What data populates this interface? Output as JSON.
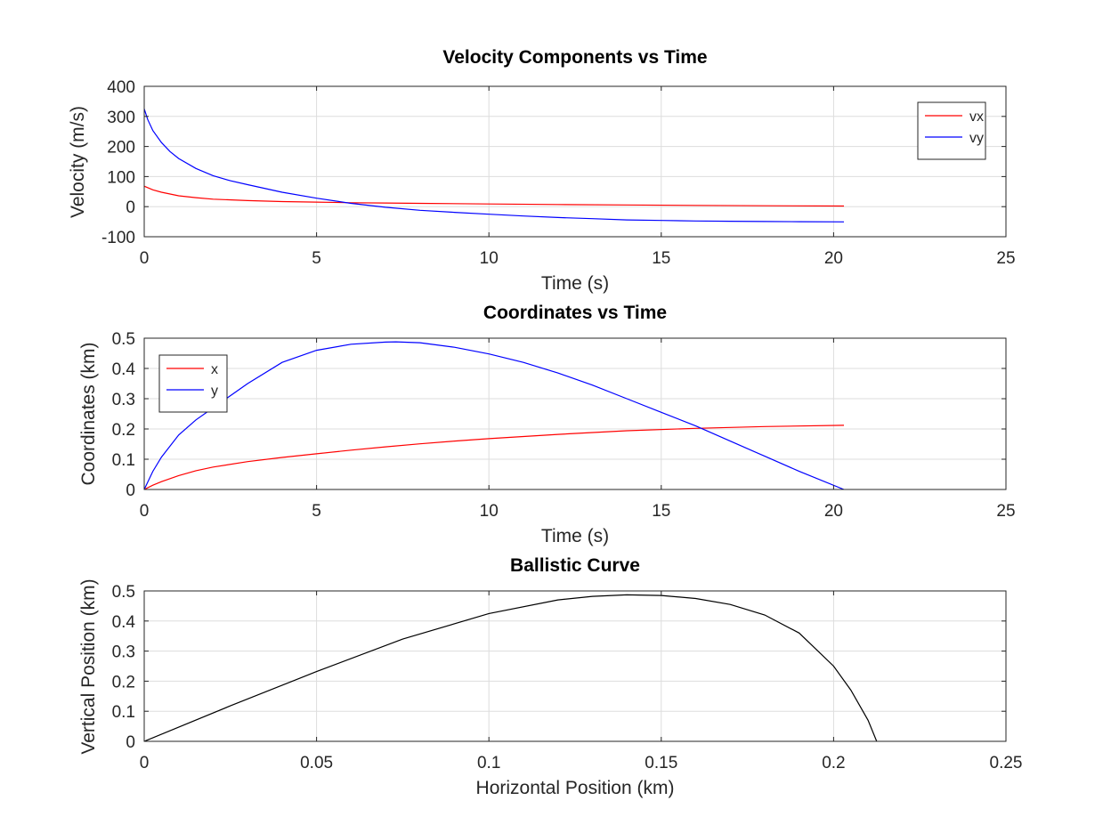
{
  "chart_data": [
    {
      "type": "line",
      "title": "Velocity Components vs Time",
      "xlabel": "Time (s)",
      "ylabel": "Velocity (m/s)",
      "xlim": [
        0,
        25
      ],
      "ylim": [
        -100,
        400
      ],
      "xticks": [
        "0",
        "5",
        "10",
        "15",
        "20",
        "25"
      ],
      "yticks": [
        "-100",
        "0",
        "100",
        "200",
        "300",
        "400"
      ],
      "grid": true,
      "legend": "top-right",
      "series": [
        {
          "name": "vx",
          "color": "#ff0000",
          "x": [
            0,
            0.25,
            0.5,
            1,
            1.5,
            2,
            3,
            4,
            5,
            6,
            7,
            8,
            10,
            12,
            14,
            16,
            18,
            20.3
          ],
          "y": [
            68,
            56,
            48,
            36,
            30,
            25,
            20,
            17,
            15,
            13,
            12,
            11,
            9,
            7,
            5.5,
            4,
            3,
            2
          ]
        },
        {
          "name": "vy",
          "color": "#0000ff",
          "x": [
            0,
            0.1,
            0.25,
            0.5,
            0.75,
            1,
            1.5,
            2,
            2.5,
            3,
            4,
            5,
            6,
            7,
            8,
            9,
            10,
            11,
            12,
            13,
            14,
            15,
            16,
            17,
            18,
            19,
            20.3
          ],
          "y": [
            325,
            290,
            253,
            213,
            183,
            160,
            127,
            103,
            86,
            73,
            48,
            28,
            11,
            -2,
            -12,
            -19,
            -25,
            -31,
            -36,
            -40,
            -44,
            -46,
            -47.5,
            -48.5,
            -49.5,
            -50,
            -50.5
          ]
        }
      ]
    },
    {
      "type": "line",
      "title": "Coordinates vs Time",
      "xlabel": "Time (s)",
      "ylabel": "Coordinates (km)",
      "xlim": [
        0,
        25
      ],
      "ylim": [
        0,
        0.5
      ],
      "xticks": [
        "0",
        "5",
        "10",
        "15",
        "20",
        "25"
      ],
      "yticks": [
        "0",
        "0.1",
        "0.2",
        "0.3",
        "0.4",
        "0.5"
      ],
      "grid": true,
      "legend": "top-left",
      "series": [
        {
          "name": "x",
          "color": "#ff0000",
          "x": [
            0,
            0.25,
            0.5,
            1,
            1.5,
            2,
            3,
            4,
            5,
            6,
            7,
            8,
            9,
            10,
            12,
            14,
            16,
            18,
            20.3
          ],
          "y": [
            0,
            0.014,
            0.026,
            0.046,
            0.062,
            0.074,
            0.092,
            0.106,
            0.118,
            0.13,
            0.141,
            0.151,
            0.16,
            0.168,
            0.182,
            0.194,
            0.202,
            0.208,
            0.212
          ]
        },
        {
          "name": "y",
          "color": "#0000ff",
          "x": [
            0,
            0.25,
            0.5,
            1,
            1.5,
            2,
            3,
            4,
            5,
            6,
            7,
            7.3,
            8,
            9,
            10,
            11,
            12,
            13,
            14,
            15,
            16,
            17,
            18,
            19,
            20.3
          ],
          "y": [
            0,
            0.06,
            0.107,
            0.18,
            0.23,
            0.27,
            0.35,
            0.42,
            0.46,
            0.48,
            0.487,
            0.488,
            0.485,
            0.47,
            0.448,
            0.42,
            0.385,
            0.345,
            0.3,
            0.255,
            0.21,
            0.16,
            0.11,
            0.06,
            0
          ]
        }
      ]
    },
    {
      "type": "line",
      "title": "Ballistic Curve",
      "xlabel": "Horizontal Position (km)",
      "ylabel": "Vertical Position (km)",
      "xlim": [
        0,
        0.25
      ],
      "ylim": [
        0,
        0.5
      ],
      "xticks": [
        "0",
        "0.05",
        "0.1",
        "0.15",
        "0.2",
        "0.25"
      ],
      "yticks": [
        "0",
        "0.1",
        "0.2",
        "0.3",
        "0.4",
        "0.5"
      ],
      "grid": true,
      "series": [
        {
          "color": "#000000",
          "x": [
            0,
            0.025,
            0.05,
            0.075,
            0.1,
            0.12,
            0.13,
            0.14,
            0.15,
            0.16,
            0.17,
            0.18,
            0.19,
            0.2,
            0.205,
            0.21,
            0.2125
          ],
          "y": [
            0,
            0.118,
            0.232,
            0.34,
            0.425,
            0.47,
            0.482,
            0.487,
            0.485,
            0.475,
            0.455,
            0.42,
            0.36,
            0.25,
            0.17,
            0.07,
            0
          ]
        }
      ]
    }
  ]
}
